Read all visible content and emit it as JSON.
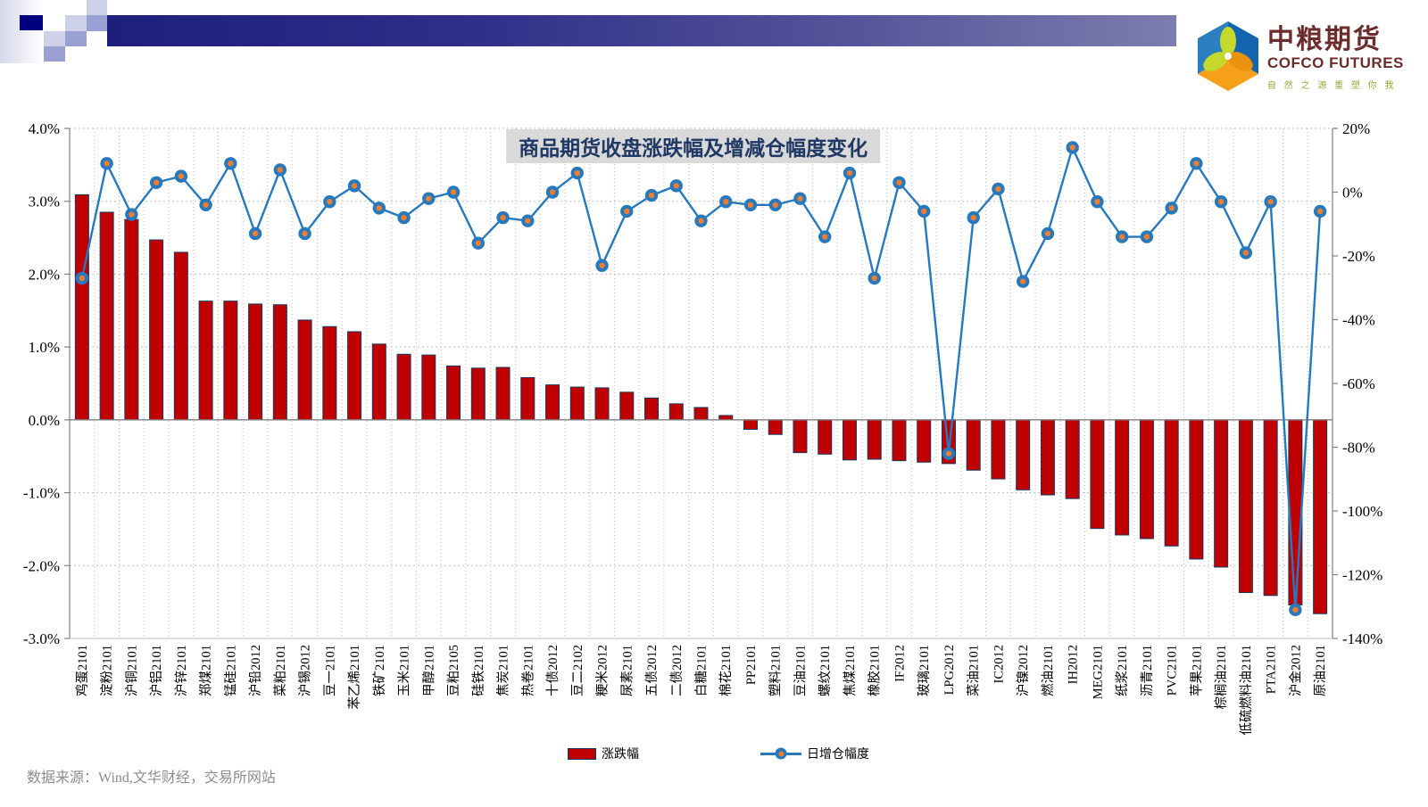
{
  "header": {
    "logo": {
      "cn": "中粮期货",
      "en": "COFCO FUTURES",
      "tagline": "自 然 之 源   重 塑 你 我"
    }
  },
  "colors": {
    "bar_fill": "#c00000",
    "bar_border": "#17375e",
    "line": "#2779bd",
    "marker_center": "#ed7d31",
    "grid": "#bfbfbf",
    "axis": "#808080",
    "zero_line": "#7f7f7f",
    "title_text": "#1f3864",
    "title_bg": "#d9d9d9"
  },
  "chart_data": {
    "type": "bar",
    "title": "商品期货收盘涨跌幅及增减仓幅度变化",
    "categories": [
      "鸡蛋2101",
      "淀粉2101",
      "沪铜2101",
      "沪铝2101",
      "沪锌2101",
      "郑煤2101",
      "锰硅2101",
      "沪铅2012",
      "菜粕2101",
      "沪锡2012",
      "豆一2101",
      "苯乙烯2101",
      "铁矿2101",
      "玉米2101",
      "甲醇2101",
      "豆粕2105",
      "硅铁2101",
      "焦炭2101",
      "热卷2101",
      "十债2012",
      "豆二2102",
      "粳米2012",
      "尿素2101",
      "五债2012",
      "二债2012",
      "白糖2101",
      "棉花2101",
      "PP2101",
      "塑料2101",
      "豆油2101",
      "螺纹2101",
      "焦煤2101",
      "橡胶2101",
      "IF2012",
      "玻璃2101",
      "LPG2012",
      "菜油2101",
      "IC2012",
      "沪镍2012",
      "燃油2101",
      "IH2012",
      "MEG2101",
      "纸浆2101",
      "沥青2101",
      "PVC2101",
      "苹果2101",
      "棕榈油2101",
      "低硫燃料油2101",
      "PTA2101",
      "沪金2012",
      "原油2101"
    ],
    "series": [
      {
        "name": "涨跌幅",
        "type": "bar",
        "axis": "left",
        "unit": "%",
        "values": [
          3.09,
          2.85,
          2.75,
          2.47,
          2.3,
          1.63,
          1.63,
          1.59,
          1.58,
          1.37,
          1.28,
          1.21,
          1.04,
          0.9,
          0.89,
          0.74,
          0.71,
          0.72,
          0.58,
          0.48,
          0.45,
          0.44,
          0.38,
          0.3,
          0.22,
          0.17,
          0.06,
          -0.13,
          -0.2,
          -0.45,
          -0.47,
          -0.55,
          -0.54,
          -0.56,
          -0.58,
          -0.6,
          -0.69,
          -0.81,
          -0.96,
          -1.03,
          -1.08,
          -1.49,
          -1.58,
          -1.63,
          -1.73,
          -1.91,
          -2.02,
          -2.37,
          -2.41,
          -2.54,
          -2.66
        ]
      },
      {
        "name": "日增仓幅度",
        "type": "line",
        "axis": "right",
        "unit": "%",
        "values": [
          -27,
          9,
          -7,
          3,
          5,
          -4,
          9,
          -13,
          7,
          -13,
          -3,
          2,
          -5,
          -8,
          -2,
          0,
          -16,
          -8,
          -9,
          0,
          6,
          -23,
          -6,
          -1,
          2,
          -9,
          -3,
          -4,
          -4,
          -2,
          -14,
          6,
          -27,
          3,
          -6,
          -82,
          -8,
          1,
          -28,
          -13,
          14,
          -3,
          -14,
          -14,
          -5,
          9,
          -3,
          -19,
          -3,
          -131,
          -6
        ]
      }
    ],
    "left_axis": {
      "min": -3,
      "max": 4,
      "tick_values": [
        4,
        3,
        2,
        1,
        0,
        -1,
        -2,
        -3
      ],
      "tick_labels": [
        "4.0%",
        "3.0%",
        "2.0%",
        "1.0%",
        "0.0%",
        "-1.0%",
        "-2.0%",
        "-3.0%"
      ]
    },
    "right_axis": {
      "min": -140,
      "max": 20,
      "tick_values": [
        20,
        0,
        -20,
        -40,
        -60,
        -80,
        -100,
        -120,
        -140
      ],
      "tick_labels": [
        "20%",
        "0%",
        "-20%",
        "-40%",
        "-60%",
        "-80%",
        "-100%",
        "-120%",
        "-140%"
      ]
    },
    "legend": [
      "涨跌幅",
      "日增仓幅度"
    ],
    "grid": "dotted horizontal at left-axis ticks, dotted vertical at every category boundary"
  },
  "footer": {
    "source": "数据来源：Wind,文华财经，交易所网站"
  }
}
